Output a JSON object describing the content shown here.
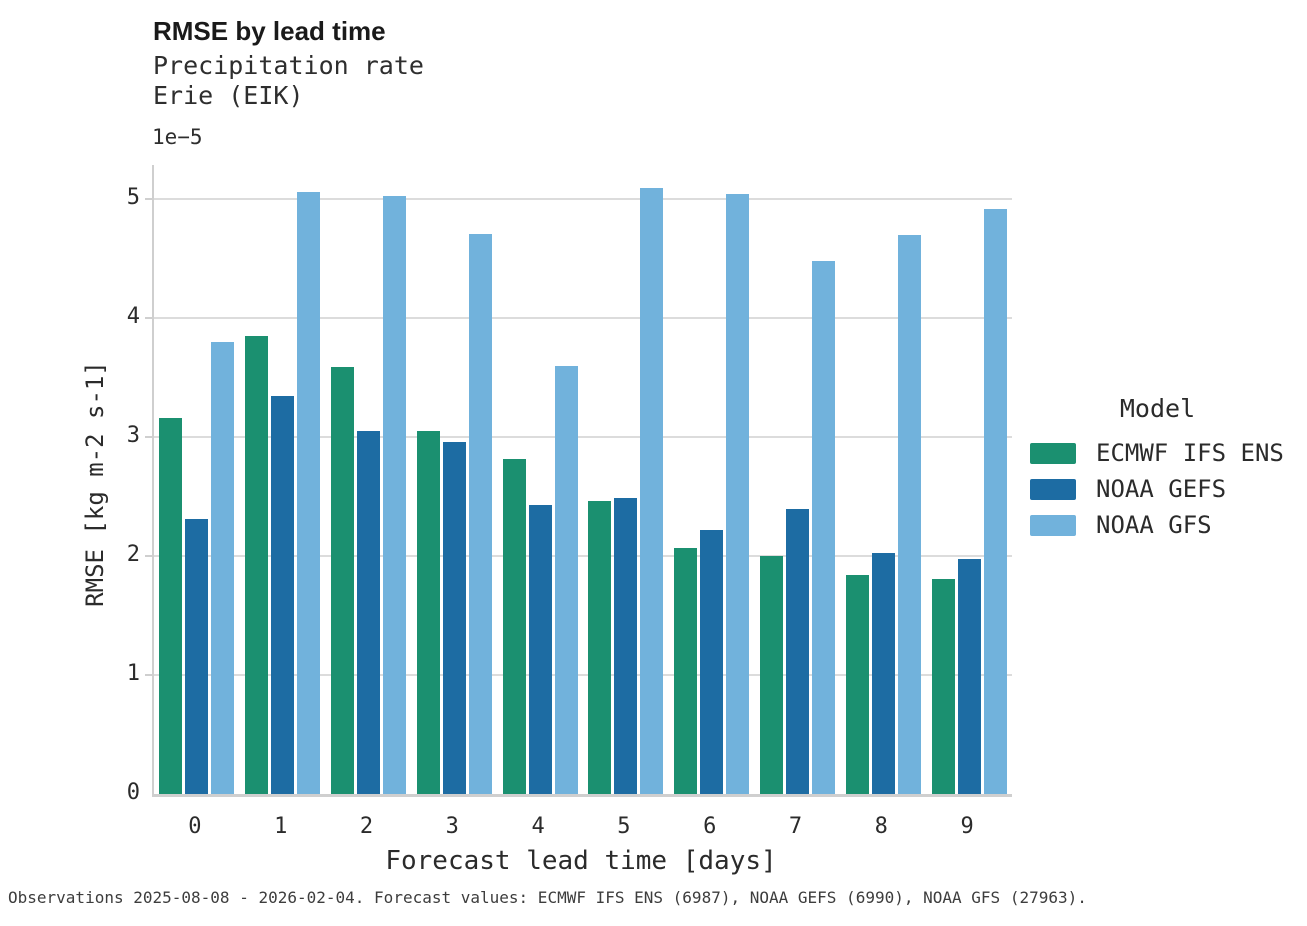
{
  "header": {
    "title": "RMSE by lead time",
    "subtitle_line1": "Precipitation rate",
    "subtitle_line2": "Erie (EIK)"
  },
  "axes": {
    "y_offset": "1e−5",
    "y_label": "RMSE [kg m-2 s-1]",
    "x_label": "Forecast lead time [days]"
  },
  "legend": {
    "title": "Model",
    "entries": [
      {
        "label": "ECMWF IFS ENS",
        "color": "#1b9070"
      },
      {
        "label": "NOAA GEFS",
        "color": "#1d6ca3"
      },
      {
        "label": "NOAA GFS",
        "color": "#71b2dc"
      }
    ]
  },
  "footer": {
    "note": "Observations 2025-08-08 - 2026-02-04. Forecast values: ECMWF IFS ENS (6987), NOAA GEFS (6990), NOAA GFS (27963)."
  },
  "chart_data": {
    "type": "bar",
    "title": "RMSE by lead time",
    "subtitle": [
      "Precipitation rate",
      "Erie (EIK)"
    ],
    "xlabel": "Forecast lead time [days]",
    "ylabel": "RMSE [kg m-2 s-1]",
    "y_scale_factor": "1e-5",
    "ylim": [
      0,
      5.29
    ],
    "yticks": [
      0,
      1,
      2,
      3,
      4,
      5
    ],
    "grid": "horizontal",
    "legend_position": "right",
    "categories": [
      "0",
      "1",
      "2",
      "3",
      "4",
      "5",
      "6",
      "7",
      "8",
      "9"
    ],
    "series": [
      {
        "name": "ECMWF IFS ENS",
        "color": "#1b9070",
        "values": [
          3.16,
          3.85,
          3.59,
          3.05,
          2.82,
          2.46,
          2.07,
          2.0,
          1.84,
          1.81
        ]
      },
      {
        "name": "NOAA GEFS",
        "color": "#1d6ca3",
        "values": [
          2.31,
          3.35,
          3.05,
          2.96,
          2.43,
          2.49,
          2.22,
          2.4,
          2.03,
          1.98
        ]
      },
      {
        "name": "NOAA GFS",
        "color": "#71b2dc",
        "values": [
          3.8,
          5.06,
          5.03,
          4.71,
          3.6,
          5.1,
          5.05,
          4.48,
          4.7,
          4.92
        ]
      }
    ]
  }
}
